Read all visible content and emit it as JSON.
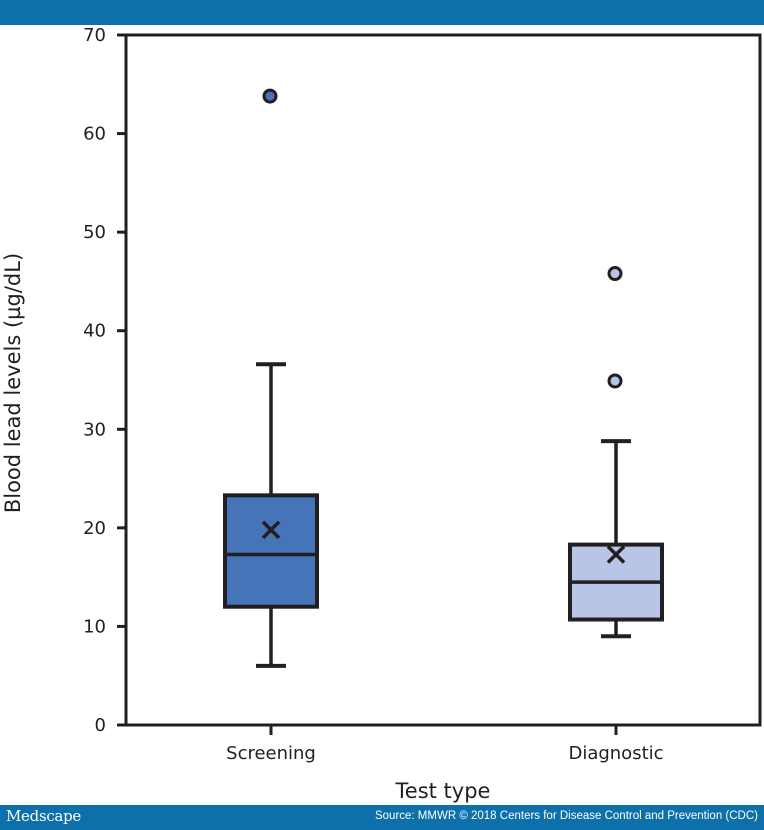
{
  "header": {
    "bar_color": "#0e70aa"
  },
  "footer": {
    "logo": "Medscape",
    "source": "Source: MMWR © 2018 Centers for Disease Control and Prevention (CDC)"
  },
  "chart_data": {
    "type": "box",
    "title": "",
    "xlabel": "Test type",
    "ylabel": "Blood lead levels (µg/dL)",
    "ylim": [
      0,
      70
    ],
    "yticks": [
      0,
      10,
      20,
      30,
      40,
      50,
      60,
      70
    ],
    "categories": [
      "Screening",
      "Diagnostic"
    ],
    "series": [
      {
        "name": "Screening",
        "min": 6,
        "q1": 12,
        "median": 17.3,
        "q3": 23.3,
        "max": 36.6,
        "mean": 19.8,
        "outliers": [
          63.8
        ],
        "color": "#4674b9"
      },
      {
        "name": "Diagnostic",
        "min": 9,
        "q1": 10.7,
        "median": 14.5,
        "q3": 18.3,
        "max": 28.8,
        "mean": 17.3,
        "outliers": [
          34.9,
          45.8
        ],
        "color": "#b8c5e7"
      }
    ]
  }
}
